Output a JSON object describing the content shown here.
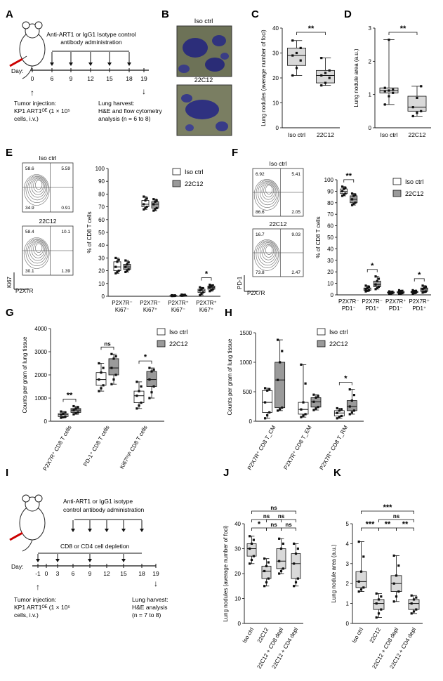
{
  "panel_letters": {
    "A": "A",
    "B": "B",
    "C": "C",
    "D": "D",
    "E": "E",
    "F": "F",
    "G": "G",
    "H": "H",
    "I": "I",
    "J": "J",
    "K": "K"
  },
  "panel_a": {
    "admin_line1": "Anti-ART1 or IgG1 Isotype control",
    "admin_line2": "antibody administration",
    "day_label": "Day:",
    "days": [
      "0",
      "6",
      "9",
      "12",
      "15",
      "18",
      "19"
    ],
    "inj_line1": "Tumor injection:",
    "inj_line2": "KP1 ART1ᴼᴱ (1 × 10⁵",
    "inj_line3": "cells, i.v.)",
    "harv_line1": "Lung harvest:",
    "harv_line2": "H&E and flow cytometry",
    "harv_line3": "analysis (n = 6 to 8)"
  },
  "panel_b": {
    "top_label": "Iso ctrl",
    "bottom_label": "22C12"
  },
  "panel_i": {
    "admin_line1": "Anti-ART1 or IgG1 isotype",
    "admin_line2": "control antibody administration",
    "depl_label": "CD8 or CD4 cell depletion",
    "day_label": "Day:",
    "days": [
      "-1",
      "0",
      "3",
      "6",
      "9",
      "12",
      "15",
      "18",
      "19"
    ],
    "inj_line1": "Tumor injection:",
    "inj_line2": "KP1 ART1ᴼᴱ (1 × 10⁵",
    "inj_line3": "cells, i.v.)",
    "harv_line1": "Lung harvest:",
    "harv_line2": "H&E analysis",
    "harv_line3": "(n = 7 to 8)"
  },
  "flow_e": {
    "top_label": "Iso ctrl",
    "bottom_label": "22C12",
    "top_q": [
      "58.6",
      "5.59",
      "34.9",
      "0.91"
    ],
    "bottom_q": [
      "58.4",
      "10.1",
      "30.1",
      "1.39"
    ],
    "ylabel": "Ki67",
    "xlabel": "P2X7R"
  },
  "flow_f": {
    "top_label": "Iso ctrl",
    "bottom_label": "22C12",
    "top_q": [
      "6.92",
      "5.41",
      "86.6",
      "2.05"
    ],
    "bottom_q": [
      "16.7",
      "9.03",
      "73.8",
      "2.47"
    ],
    "ylabel": "PD-1",
    "xlabel": "P2X7R"
  },
  "colors": {
    "iso": "#ffffff",
    "c22": "#9a9a9a",
    "light": "#d9d9d9",
    "axis": "#111111"
  },
  "chart_data": [
    {
      "id": "C",
      "type": "box",
      "categories": [
        "Iso ctrl",
        "22C12"
      ],
      "ylabel": "Lung nodules (average number of foci)",
      "ylim": [
        0,
        40
      ],
      "yticks": [
        0,
        10,
        20,
        30,
        40
      ],
      "series": [
        {
          "fill": "light",
          "boxes": [
            [
              21,
              25,
              29,
              32,
              35
            ],
            [
              17,
              18,
              21,
              23,
              28
            ]
          ],
          "points": [
            [
              21,
              24,
              27,
              29,
              30,
              32,
              35
            ],
            [
              17,
              18,
              20,
              21,
              22,
              23,
              28
            ]
          ]
        }
      ],
      "annotations": [
        {
          "text": "**",
          "from": 0,
          "to": 1
        }
      ]
    },
    {
      "id": "D",
      "type": "box",
      "categories": [
        "Iso ctrl",
        "22C12"
      ],
      "ylabel": "Lung nodule area (a.u.)",
      "ylim": [
        0,
        3
      ],
      "yticks": [
        0,
        1,
        2,
        3
      ],
      "series": [
        {
          "fill": "light",
          "boxes": [
            [
              0.7,
              1.05,
              1.12,
              1.2,
              2.65
            ],
            [
              0.35,
              0.5,
              0.62,
              0.95,
              1.25
            ]
          ],
          "points": [
            [
              0.7,
              0.95,
              1.05,
              1.1,
              1.12,
              1.15,
              1.2,
              2.65
            ],
            [
              0.35,
              0.45,
              0.5,
              0.62,
              0.9,
              1.25
            ]
          ]
        }
      ],
      "annotations": [
        {
          "text": "**",
          "from": 0,
          "to": 1
        }
      ]
    },
    {
      "id": "E",
      "type": "box",
      "categories": [
        "P2X7R⁻ Ki67⁻",
        "P2X7R⁻ Ki67⁺",
        "P2X7R⁺ Ki67⁻",
        "P2X7R⁺ Ki67⁺"
      ],
      "ylabel": "% of CD8 T cells",
      "ylim": [
        0,
        100
      ],
      "yticks": [
        0,
        10,
        20,
        30,
        40,
        50,
        60,
        70,
        80,
        90,
        100
      ],
      "legend": [
        "Iso ctrl",
        "22C12"
      ],
      "series": [
        {
          "name": "Iso ctrl",
          "fill": "iso",
          "boxes": [
            [
              18,
              20,
              23,
              27,
              30
            ],
            [
              68,
              70,
              72,
              75,
              78
            ],
            [
              0.2,
              0.3,
              0.5,
              0.6,
              0.8
            ],
            [
              1,
              3,
              4.5,
              5.5,
              7
            ]
          ]
        },
        {
          "name": "22C12",
          "fill": "c22",
          "boxes": [
            [
              19,
              21,
              23,
              25,
              28
            ],
            [
              67,
              69,
              72,
              74,
              76
            ],
            [
              0.4,
              0.6,
              0.8,
              1,
              1.3
            ],
            [
              4,
              5.5,
              7,
              8,
              9
            ]
          ]
        }
      ],
      "annotations": [
        {
          "text": "*",
          "from": 3,
          "to": 3
        }
      ]
    },
    {
      "id": "F",
      "type": "box",
      "categories": [
        "P2X7R⁻ PD1⁻",
        "P2X7R⁻ PD1⁺",
        "P2X7R⁺ PD1⁻",
        "P2X7R⁺ PD1⁺"
      ],
      "ylabel": "% of CD8 T cells",
      "ylim": [
        0,
        100
      ],
      "yticks": [
        0,
        10,
        20,
        30,
        40,
        50,
        60,
        70,
        80,
        90,
        100
      ],
      "legend": [
        "Iso ctrl",
        "22C12"
      ],
      "series": [
        {
          "name": "Iso ctrl",
          "fill": "iso",
          "boxes": [
            [
              86,
              88,
              90,
              92,
              94
            ],
            [
              3,
              4,
              5,
              6,
              8
            ],
            [
              1,
              1.5,
              2,
              2.5,
              3
            ],
            [
              1,
              2,
              2.5,
              3,
              4
            ]
          ]
        },
        {
          "name": "22C12",
          "fill": "c22",
          "boxes": [
            [
              78,
              80,
              83,
              86,
              88
            ],
            [
              5,
              7,
              9,
              12,
              16
            ],
            [
              1,
              1.5,
              2,
              3,
              4
            ],
            [
              2,
              3,
              5,
              6,
              8
            ]
          ]
        }
      ],
      "annotations": [
        {
          "text": "**",
          "from": 0,
          "to": 0
        },
        {
          "text": "*",
          "from": 1,
          "to": 1
        },
        {
          "text": "*",
          "from": 3,
          "to": 3
        }
      ]
    },
    {
      "id": "G",
      "type": "box",
      "categories": [
        "P2X7R⁺ CD8 T cells",
        "PD-1⁺ CD8 T cells",
        "Ki67ʰⁱᵍʰ CD8 T cells"
      ],
      "ylabel": "Counts per gram of lung tissue",
      "ylim": [
        0,
        4000
      ],
      "yticks": [
        0,
        1000,
        2000,
        3000,
        4000
      ],
      "legend": [
        "Iso ctrl",
        "22C12"
      ],
      "series": [
        {
          "name": "Iso ctrl",
          "fill": "iso",
          "boxes": [
            [
              150,
              200,
              280,
              330,
              420
            ],
            [
              1300,
              1550,
              1800,
              2100,
              2500
            ],
            [
              550,
              800,
              1100,
              1300,
              1700
            ]
          ]
        },
        {
          "name": "22C12",
          "fill": "c22",
          "boxes": [
            [
              300,
              380,
              480,
              550,
              650
            ],
            [
              1600,
              2000,
              2300,
              2700,
              2900
            ],
            [
              1000,
              1500,
              1800,
              2150,
              2300
            ]
          ]
        }
      ],
      "annotations": [
        {
          "text": "**",
          "from": 0,
          "to": 0
        },
        {
          "text": "ns",
          "from": 1,
          "to": 1
        },
        {
          "text": "*",
          "from": 2,
          "to": 2
        }
      ]
    },
    {
      "id": "H",
      "type": "box",
      "categories": [
        "P2X7R⁺ CD8 T_CM",
        "P2X7R⁺ CD8 T_EM",
        "P2X7R⁺ CD8 T_RM"
      ],
      "ylabel": "Counts per gram of lung tissue",
      "ylim": [
        0,
        1500
      ],
      "yticks": [
        0,
        500,
        1000,
        1500
      ],
      "legend": [
        "Iso ctrl",
        "22C12"
      ],
      "series": [
        {
          "name": "Iso ctrl",
          "fill": "iso",
          "boxes": [
            [
              50,
              150,
              320,
              520,
              560
            ],
            [
              70,
              120,
              200,
              320,
              960
            ],
            [
              50,
              90,
              140,
              180,
              220
            ]
          ]
        },
        {
          "name": "22C12",
          "fill": "c22",
          "boxes": [
            [
              180,
              230,
              700,
              1000,
              1380
            ],
            [
              190,
              240,
              330,
              400,
              450
            ],
            [
              120,
              180,
              250,
              350,
              540
            ]
          ]
        }
      ],
      "annotations": [
        {
          "text": "*",
          "from": 2,
          "to": 2
        }
      ]
    },
    {
      "id": "J",
      "type": "box",
      "categories": [
        "Iso ctrl",
        "22C12",
        "22C12 + CD8 depl",
        "22C12 + CD4 depl"
      ],
      "ylabel": "Lung nodules (average number of foci)",
      "ylim": [
        0,
        40
      ],
      "yticks": [
        0,
        10,
        20,
        30,
        40
      ],
      "series": [
        {
          "fill": "light",
          "boxes": [
            [
              24,
              27,
              30,
              32,
              35
            ],
            [
              15,
              18,
              21,
              23,
              26
            ],
            [
              20,
              22,
              25,
              30,
              34
            ],
            [
              15,
              18,
              24,
              28,
              32
            ]
          ]
        }
      ],
      "annotations": [
        {
          "text": "*",
          "from": 0,
          "to": 1
        },
        {
          "text": "ns",
          "from": 1,
          "to": 2
        },
        {
          "text": "ns",
          "from": 2,
          "to": 3
        },
        {
          "text": "ns",
          "from": 0,
          "to": 2
        },
        {
          "text": "ns",
          "from": 1,
          "to": 3
        },
        {
          "text": "ns",
          "from": 0,
          "to": 3
        }
      ]
    },
    {
      "id": "K",
      "type": "box",
      "categories": [
        "Iso ctrl",
        "22C12",
        "22C12 + CD8 depl",
        "22C12 + CD4 depl"
      ],
      "ylabel": "Lung nodule area (a.u.)",
      "ylim": [
        0,
        5
      ],
      "yticks": [
        0,
        1,
        2,
        3,
        4,
        5
      ],
      "series": [
        {
          "fill": "light",
          "boxes": [
            [
              1.6,
              1.8,
              2.1,
              2.6,
              4.1
            ],
            [
              0.3,
              0.7,
              1.0,
              1.2,
              1.5
            ],
            [
              1.1,
              1.6,
              2.0,
              2.4,
              3.4
            ],
            [
              0.5,
              0.7,
              1.0,
              1.2,
              1.4
            ]
          ]
        }
      ],
      "annotations": [
        {
          "text": "***",
          "from": 0,
          "to": 1
        },
        {
          "text": "**",
          "from": 1,
          "to": 2
        },
        {
          "text": "**",
          "from": 2,
          "to": 3
        },
        {
          "text": "ns",
          "from": 1,
          "to": 3
        },
        {
          "text": "***",
          "from": 0,
          "to": 3
        }
      ]
    }
  ]
}
